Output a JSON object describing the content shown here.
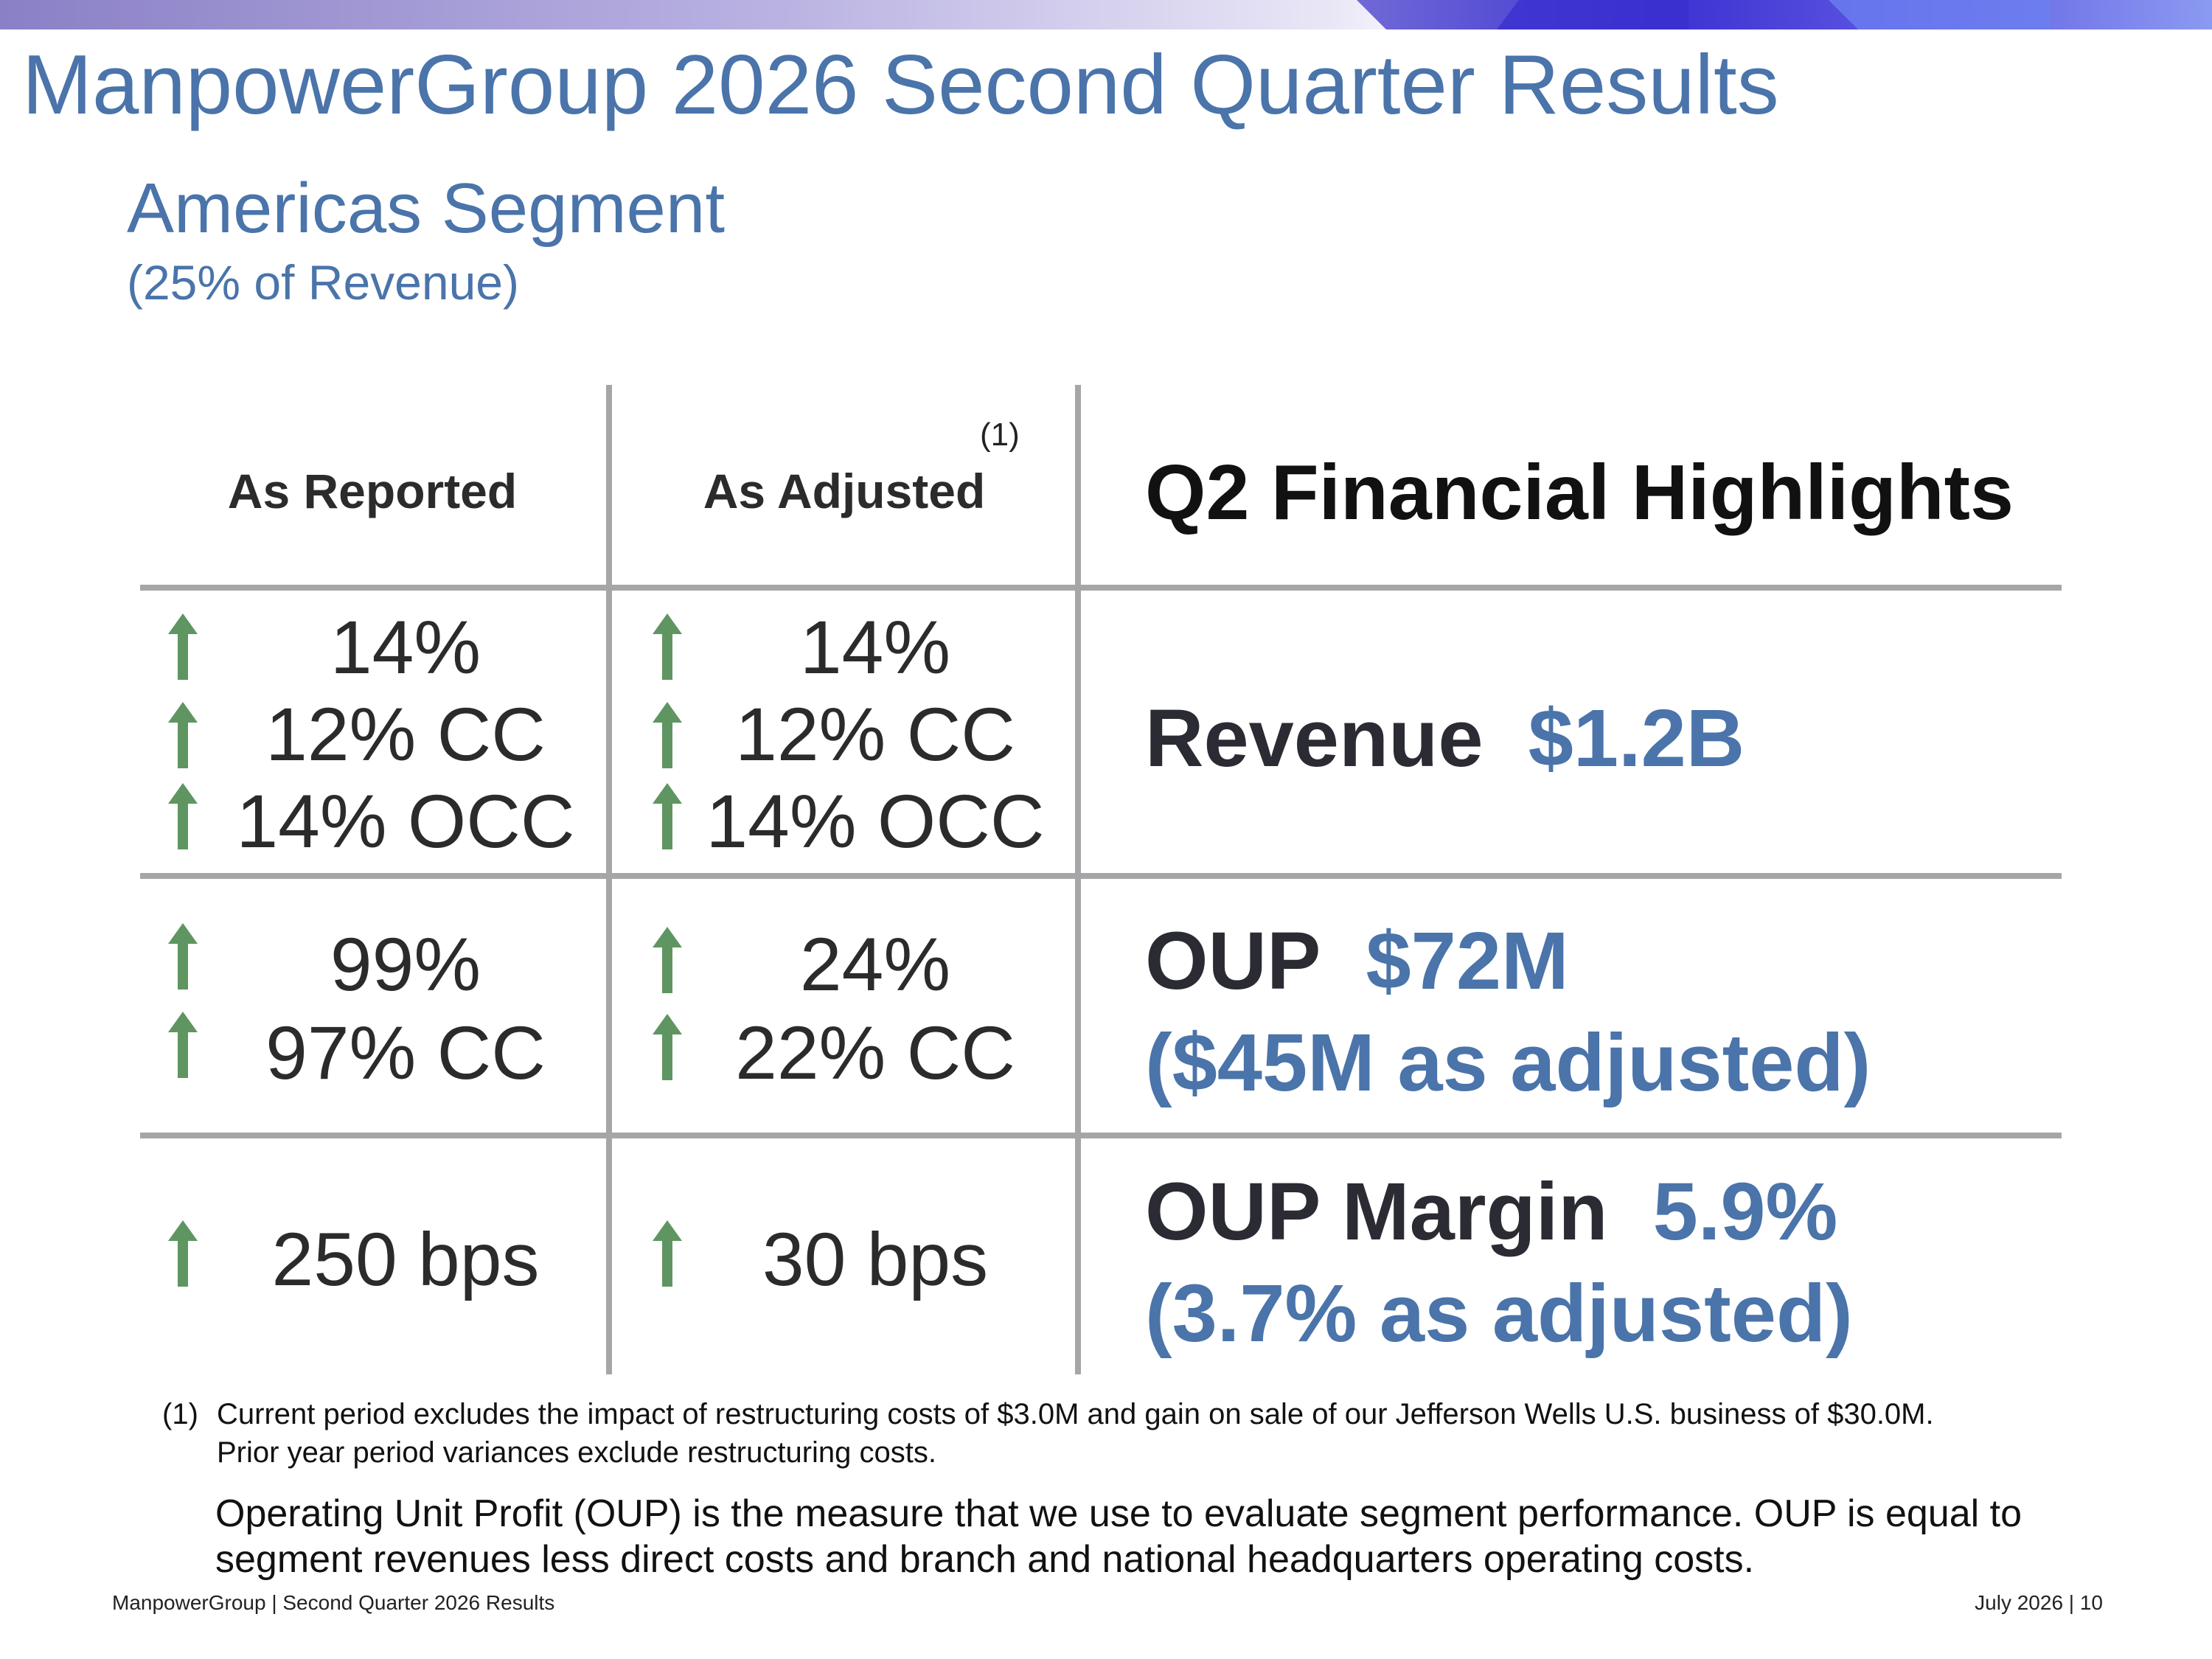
{
  "title": "ManpowerGroup 2026 Second Quarter Results",
  "segment": {
    "title": "Americas Segment",
    "subtitle": "(25% of Revenue)"
  },
  "columns": {
    "reported": "As Reported",
    "adjusted": "As Adjusted",
    "adjusted_note": "(1)",
    "highlights": "Q2 Financial Highlights"
  },
  "rows": {
    "revenue": {
      "reported": [
        "14%",
        "12% CC",
        "14% OCC"
      ],
      "adjusted": [
        "14%",
        "12% CC",
        "14% OCC"
      ],
      "label": "Revenue",
      "value": "$1.2B"
    },
    "oup": {
      "reported": [
        "99%",
        "97% CC"
      ],
      "adjusted": [
        "24%",
        "22% CC"
      ],
      "label": "OUP",
      "value": "$72M",
      "adjusted_value": "($45M as adjusted)"
    },
    "margin": {
      "reported": [
        "250 bps"
      ],
      "adjusted": [
        "30 bps"
      ],
      "label": "OUP Margin",
      "value": "5.9%",
      "adjusted_value": "(3.7% as adjusted)"
    }
  },
  "footnote": {
    "number": "(1)",
    "text": "Current period excludes the impact of restructuring costs of $3.0M and gain on sale of our Jefferson Wells U.S. business of $30.0M. Prior year period variances exclude restructuring costs."
  },
  "definition": "Operating Unit Profit (OUP) is the measure that we use to evaluate segment performance.  OUP is equal to segment revenues less direct costs and branch and national headquarters operating costs.",
  "footer": {
    "left": "ManpowerGroup  |  Second Quarter 2026 Results",
    "right": "July 2026   |   10"
  },
  "colors": {
    "accent": "#4a74aa",
    "arrow": "#5f9561",
    "grid": "#a6a6a8"
  },
  "icons": {
    "trend": "arrow-up-icon"
  }
}
